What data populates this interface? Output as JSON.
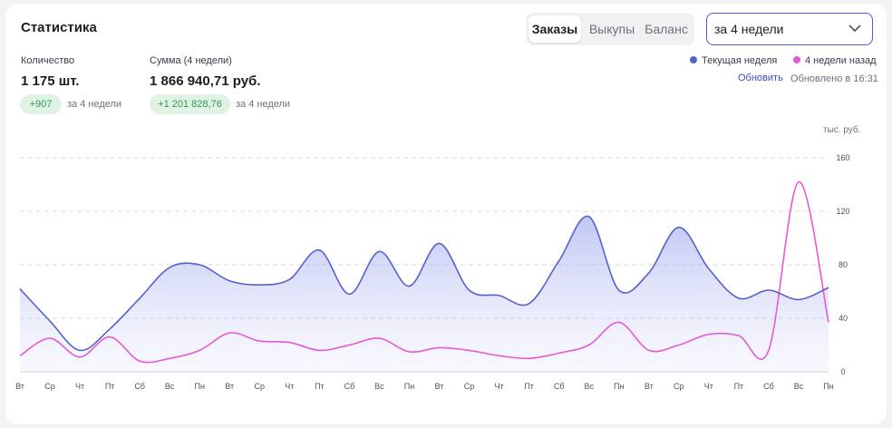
{
  "header": {
    "title": "Статистика",
    "tabs": [
      {
        "label": "Заказы",
        "active": true
      },
      {
        "label": "Выкупы",
        "active": false
      },
      {
        "label": "Баланс",
        "active": false
      }
    ],
    "period_select": "за 4 недели"
  },
  "stats": {
    "quantity": {
      "label": "Количество",
      "value": "1 175 шт.",
      "delta": "+907",
      "delta_note": "за 4 недели"
    },
    "sum": {
      "label": "Сумма (4 недели)",
      "value": "1 866 940,71 руб.",
      "delta": "+1 201 828,76",
      "delta_note": "за 4 недели"
    }
  },
  "legend": {
    "current": {
      "label": "Текущая неделя",
      "color": "#5561cc"
    },
    "previous": {
      "label": "4 недели назад",
      "color": "#e35bd6"
    }
  },
  "refresh_label": "Обновить",
  "updated_label": "Обновлено в 16:31",
  "chart_data": {
    "type": "area",
    "ylabel": "тыс. руб.",
    "ylim": [
      0,
      160
    ],
    "yticks": [
      0,
      40,
      80,
      120,
      160
    ],
    "grid": true,
    "legend_position": "top-right",
    "categories": [
      "Вт",
      "Ср",
      "Чт",
      "Пт",
      "Сб",
      "Вс",
      "Пн",
      "Вт",
      "Ср",
      "Чт",
      "Пт",
      "Сб",
      "Вс",
      "Пн",
      "Вт",
      "Ср",
      "Чт",
      "Пт",
      "Сб",
      "Вс",
      "Пн",
      "Вт",
      "Ср",
      "Чт",
      "Пт",
      "Сб",
      "Вс",
      "Пн"
    ],
    "series": [
      {
        "name": "Текущая неделя",
        "color": "#5561cc",
        "values": [
          62,
          38,
          16,
          32,
          55,
          78,
          80,
          68,
          65,
          69,
          91,
          58,
          90,
          64,
          96,
          61,
          57,
          51,
          83,
          116,
          61,
          74,
          108,
          77,
          55,
          61,
          54,
          63
        ]
      },
      {
        "name": "4 недели назад",
        "color": "#e35bd6",
        "values": [
          12,
          25,
          11,
          26,
          8,
          10,
          16,
          29,
          23,
          22,
          16,
          20,
          25,
          15,
          18,
          16,
          12,
          10,
          14,
          20,
          37,
          16,
          20,
          28,
          27,
          16,
          142,
          37
        ]
      }
    ]
  }
}
